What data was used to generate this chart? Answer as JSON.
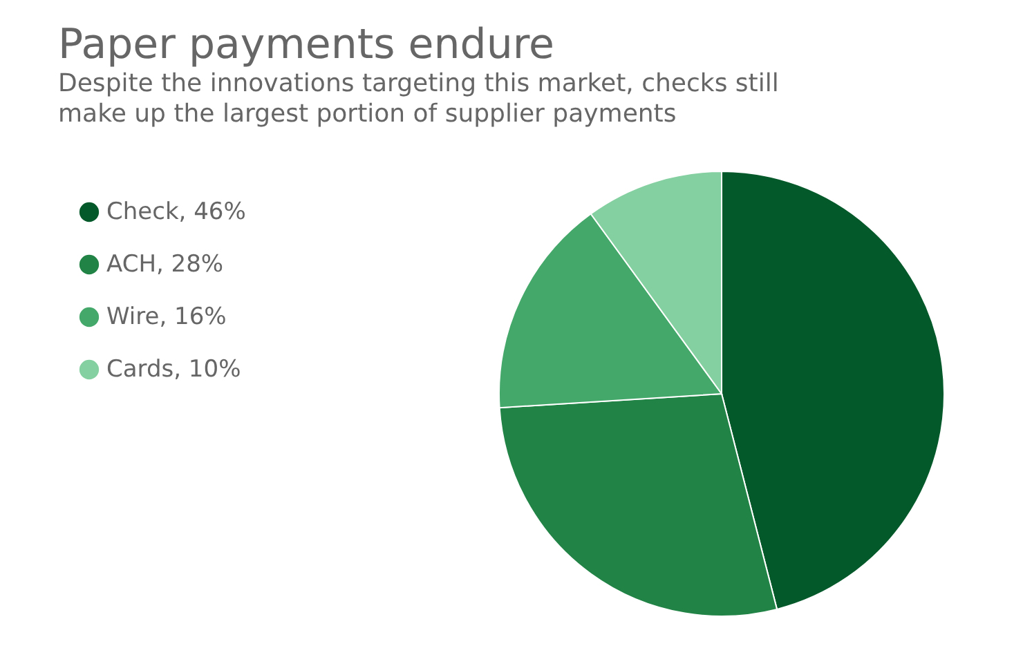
{
  "chart_data": {
    "type": "pie",
    "title": "Paper payments endure",
    "subtitle": [
      "Despite the innovations targeting this market, checks still",
      "make up the largest portion of supplier payments"
    ],
    "categories": [
      "Check, 46%",
      "ACH, 28%",
      "Wire, 16%",
      "Cards, 10%"
    ],
    "values": [
      46,
      28,
      16,
      10
    ],
    "colors": [
      "#03592a",
      "#218346",
      "#45a86b",
      "#84d0a0"
    ],
    "legend": "left"
  }
}
